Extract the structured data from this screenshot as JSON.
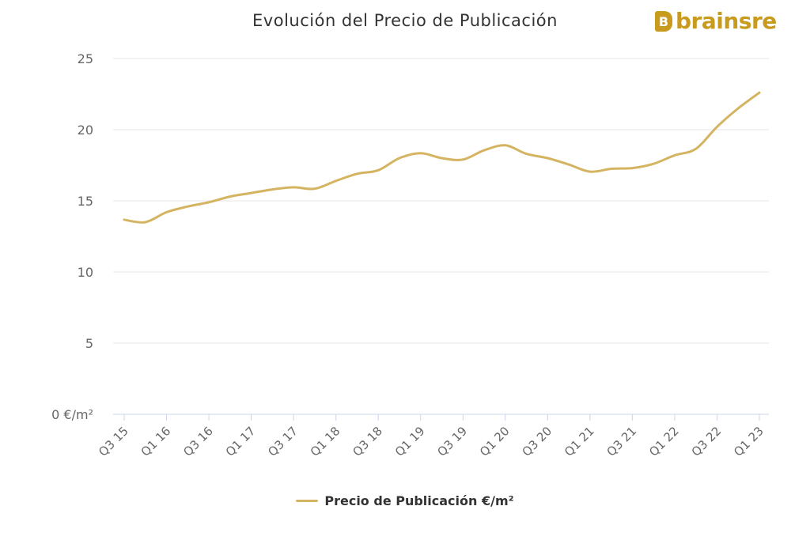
{
  "title": "Evolución del Precio de Publicación",
  "logo": {
    "mark": "B",
    "word": "brainsre"
  },
  "colors": {
    "line": "#d4b461",
    "grid": "#e6e6e6",
    "brand": "#c89a1e"
  },
  "chart_data": {
    "type": "line",
    "title": "Evolución del Precio de Publicación",
    "xlabel": "",
    "ylabel": "",
    "ylim": [
      0,
      25
    ],
    "yticks": [
      0,
      5,
      10,
      15,
      20,
      25
    ],
    "ytick_labels": [
      "0 €/m²",
      "5",
      "10",
      "15",
      "20",
      "25"
    ],
    "x": [
      "Q3 15",
      "Q4 15",
      "Q1 16",
      "Q2 16",
      "Q3 16",
      "Q4 16",
      "Q1 17",
      "Q2 17",
      "Q3 17",
      "Q4 17",
      "Q1 18",
      "Q2 18",
      "Q3 18",
      "Q4 18",
      "Q1 19",
      "Q2 19",
      "Q3 19",
      "Q4 19",
      "Q1 20",
      "Q2 20",
      "Q3 20",
      "Q4 20",
      "Q1 21",
      "Q2 21",
      "Q3 21",
      "Q4 21",
      "Q1 22",
      "Q2 22",
      "Q3 22",
      "Q4 22",
      "Q1 23"
    ],
    "xtick_labels": [
      "Q3 15",
      "Q1 16",
      "Q3 16",
      "Q1 17",
      "Q3 17",
      "Q1 18",
      "Q3 18",
      "Q1 19",
      "Q3 19",
      "Q1 20",
      "Q3 20",
      "Q1 21",
      "Q3 21",
      "Q1 22",
      "Q3 22",
      "Q1 23"
    ],
    "series": [
      {
        "name": "Precio de Publicación €/m²",
        "values": [
          13.67,
          13.5,
          14.2,
          14.6,
          14.9,
          15.3,
          15.55,
          15.8,
          15.95,
          15.85,
          16.4,
          16.9,
          17.15,
          18.0,
          18.35,
          18.0,
          17.9,
          18.55,
          18.9,
          18.3,
          18.0,
          17.55,
          17.05,
          17.25,
          17.3,
          17.6,
          18.2,
          18.65,
          20.2,
          21.5,
          22.6
        ]
      }
    ],
    "grid": true,
    "legend": "bottom-center"
  }
}
